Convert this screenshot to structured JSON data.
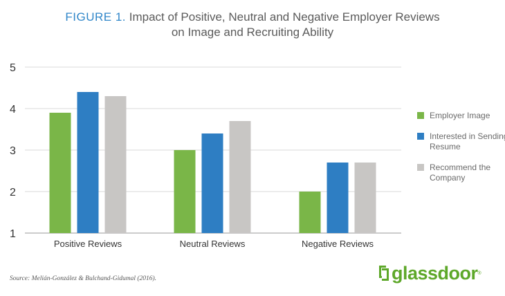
{
  "title": {
    "figure_label": "FIGURE 1.",
    "text_line1": "Impact of Positive, Neutral and Negative Employer Reviews",
    "text_line2": "on Image and Recruiting Ability"
  },
  "source": "Source: Melián-González & Bulchand-Gidumal (2016).",
  "logo": {
    "text": "glassdoor",
    "mark": "®"
  },
  "chart_data": {
    "type": "bar",
    "categories": [
      "Positive Reviews",
      "Neutral Reviews",
      "Negative Reviews"
    ],
    "series": [
      {
        "name": "Employer Image",
        "values": [
          3.9,
          3.0,
          2.0
        ],
        "color": "#7ab648"
      },
      {
        "name": "Interested in Sending Resume",
        "values": [
          4.4,
          3.4,
          2.7
        ],
        "color": "#2e7ec3"
      },
      {
        "name": "Recommend the Company",
        "values": [
          4.3,
          3.7,
          2.7
        ],
        "color": "#c8c6c4"
      }
    ],
    "ylim": [
      1,
      5
    ],
    "yticks": [
      "1",
      "2",
      "3",
      "4",
      "5"
    ],
    "grid": true,
    "legend_position": "right"
  }
}
